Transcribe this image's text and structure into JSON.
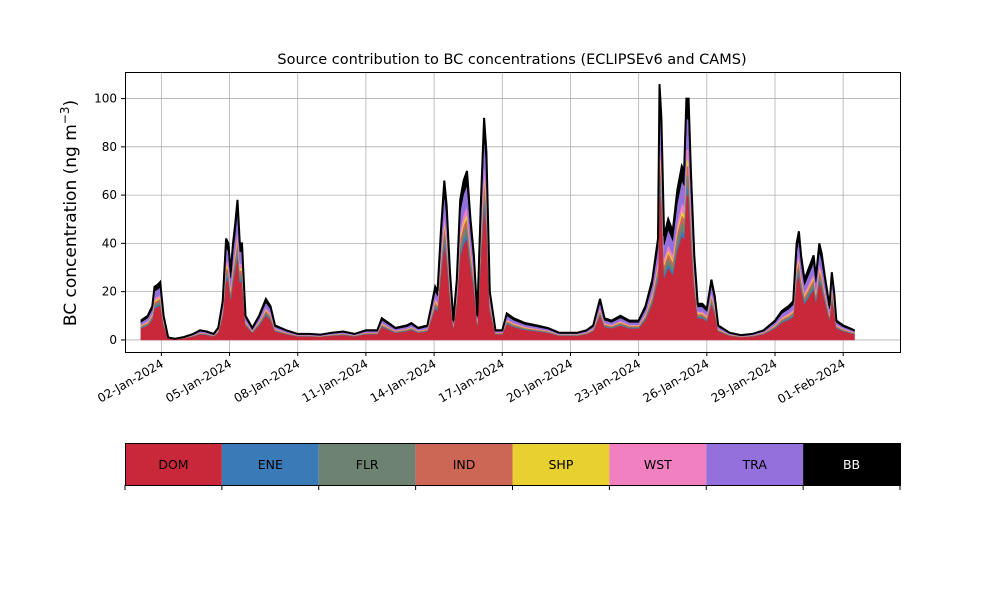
{
  "chart_data": {
    "type": "area",
    "stacked": true,
    "title": "Source contribution to BC concentrations (ECLIPSEv6 and CAMS)",
    "ylabel": "BC concentration (ng m",
    "ylabel_superscript": "−3",
    "ylabel_suffix": ")",
    "xlabel": "",
    "ylim": [
      -5,
      111
    ],
    "yticks": [
      0,
      20,
      40,
      60,
      80,
      100
    ],
    "xlim": [
      -1.6,
      32.5
    ],
    "xticks": [
      0,
      3,
      6,
      9,
      12,
      15,
      18,
      21,
      24,
      27,
      30
    ],
    "xtick_labels": [
      "02-Jan-2024",
      "05-Jan-2024",
      "08-Jan-2024",
      "11-Jan-2024",
      "14-Jan-2024",
      "17-Jan-2024",
      "20-Jan-2024",
      "23-Jan-2024",
      "26-Jan-2024",
      "29-Jan-2024",
      "01-Feb-2024"
    ],
    "x_units": "days since 02-Jan-2024",
    "grid": true,
    "legend_placement": "colorbar below plot",
    "total_profile": [
      [
        -0.9,
        8
      ],
      [
        -0.6,
        10
      ],
      [
        -0.4,
        14
      ],
      [
        -0.3,
        22
      ],
      [
        -0.15,
        23
      ],
      [
        -0.05,
        24
      ],
      [
        0.1,
        10
      ],
      [
        0.3,
        1
      ],
      [
        0.6,
        0.5
      ],
      [
        1.0,
        1.2
      ],
      [
        1.4,
        2.5
      ],
      [
        1.7,
        4
      ],
      [
        2.0,
        3.5
      ],
      [
        2.3,
        2.5
      ],
      [
        2.5,
        5
      ],
      [
        2.7,
        16
      ],
      [
        2.85,
        42
      ],
      [
        2.95,
        40
      ],
      [
        3.05,
        28
      ],
      [
        3.15,
        40
      ],
      [
        3.25,
        48
      ],
      [
        3.35,
        58
      ],
      [
        3.45,
        40
      ],
      [
        3.55,
        40
      ],
      [
        3.7,
        10
      ],
      [
        4.0,
        5
      ],
      [
        4.3,
        10
      ],
      [
        4.6,
        17
      ],
      [
        4.8,
        14
      ],
      [
        5.0,
        6
      ],
      [
        5.5,
        4
      ],
      [
        6.0,
        2.5
      ],
      [
        6.5,
        2.5
      ],
      [
        7.0,
        2.2
      ],
      [
        7.5,
        3
      ],
      [
        8.0,
        3.5
      ],
      [
        8.5,
        2.5
      ],
      [
        9.0,
        4
      ],
      [
        9.5,
        4
      ],
      [
        9.7,
        9
      ],
      [
        10.0,
        7
      ],
      [
        10.3,
        5
      ],
      [
        10.8,
        6
      ],
      [
        11.0,
        7
      ],
      [
        11.3,
        5
      ],
      [
        11.7,
        6
      ],
      [
        11.9,
        15
      ],
      [
        12.05,
        22
      ],
      [
        12.15,
        20
      ],
      [
        12.3,
        45
      ],
      [
        12.45,
        66
      ],
      [
        12.55,
        56
      ],
      [
        12.7,
        28
      ],
      [
        12.85,
        8
      ],
      [
        13.0,
        25
      ],
      [
        13.15,
        58
      ],
      [
        13.3,
        66
      ],
      [
        13.45,
        70
      ],
      [
        13.6,
        50
      ],
      [
        13.75,
        35
      ],
      [
        13.9,
        10
      ],
      [
        14.05,
        55
      ],
      [
        14.2,
        92
      ],
      [
        14.3,
        78
      ],
      [
        14.45,
        20
      ],
      [
        14.7,
        4
      ],
      [
        15.0,
        4
      ],
      [
        15.2,
        11
      ],
      [
        15.5,
        9
      ],
      [
        16.0,
        7
      ],
      [
        16.5,
        6
      ],
      [
        17.0,
        5
      ],
      [
        17.5,
        3
      ],
      [
        18.0,
        3
      ],
      [
        18.3,
        3
      ],
      [
        18.7,
        4
      ],
      [
        19.0,
        6
      ],
      [
        19.3,
        17
      ],
      [
        19.5,
        9
      ],
      [
        19.8,
        8
      ],
      [
        20.2,
        10
      ],
      [
        20.6,
        8
      ],
      [
        21.0,
        8
      ],
      [
        21.3,
        14
      ],
      [
        21.6,
        25
      ],
      [
        21.85,
        42
      ],
      [
        21.92,
        106
      ],
      [
        22.0,
        92
      ],
      [
        22.12,
        43
      ],
      [
        22.3,
        50
      ],
      [
        22.5,
        45
      ],
      [
        22.7,
        62
      ],
      [
        22.9,
        72
      ],
      [
        23.0,
        70
      ],
      [
        23.1,
        100
      ],
      [
        23.2,
        100
      ],
      [
        23.3,
        70
      ],
      [
        23.45,
        35
      ],
      [
        23.6,
        15
      ],
      [
        23.8,
        15
      ],
      [
        24.0,
        13
      ],
      [
        24.2,
        25
      ],
      [
        24.35,
        18
      ],
      [
        24.5,
        6
      ],
      [
        25.0,
        3
      ],
      [
        25.5,
        2
      ],
      [
        26.0,
        2.5
      ],
      [
        26.5,
        4
      ],
      [
        27.0,
        8
      ],
      [
        27.3,
        12
      ],
      [
        27.6,
        14
      ],
      [
        27.8,
        16
      ],
      [
        27.95,
        40
      ],
      [
        28.05,
        45
      ],
      [
        28.15,
        35
      ],
      [
        28.3,
        25
      ],
      [
        28.5,
        30
      ],
      [
        28.7,
        35
      ],
      [
        28.8,
        26
      ],
      [
        28.95,
        40
      ],
      [
        29.05,
        36
      ],
      [
        29.2,
        26
      ],
      [
        29.4,
        14
      ],
      [
        29.5,
        28
      ],
      [
        29.6,
        20
      ],
      [
        29.7,
        8
      ],
      [
        30.0,
        6
      ],
      [
        30.5,
        4
      ]
    ],
    "source_fractions": [
      0.6,
      0.03,
      0.05,
      0.04,
      0.025,
      0.045,
      0.125,
      0.085
    ],
    "series": [
      {
        "name": "DOM",
        "color": "#c8283a"
      },
      {
        "name": "ENE",
        "color": "#3a7ab6"
      },
      {
        "name": "FLR",
        "color": "#6e8272"
      },
      {
        "name": "IND",
        "color": "#cc6655"
      },
      {
        "name": "SHP",
        "color": "#e8d030"
      },
      {
        "name": "WST",
        "color": "#f080c0"
      },
      {
        "name": "TRA",
        "color": "#9370db"
      },
      {
        "name": "BB",
        "color": "#000000"
      }
    ],
    "legend_text_colors": [
      "#000000",
      "#000000",
      "#000000",
      "#000000",
      "#000000",
      "#000000",
      "#000000",
      "#ffffff"
    ]
  }
}
